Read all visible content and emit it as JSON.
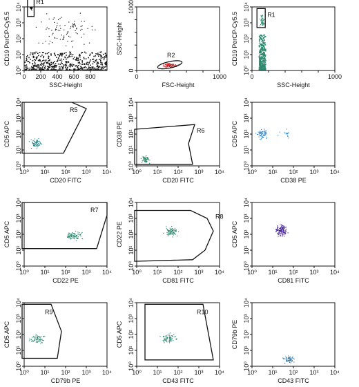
{
  "chart_data": [
    {
      "type": "scatter",
      "xlabel": "SSC-Height",
      "ylabel": "CD19 PerCP-Cy5.5",
      "xscale": "linear",
      "xlim": [
        0,
        1000
      ],
      "xticks": [
        "0",
        "200",
        "400",
        "600",
        "800"
      ],
      "yscale": "log",
      "ylim": [
        1,
        10000
      ],
      "yticks": [
        "10⁰",
        "10¹",
        "10²",
        "10³",
        "10⁴"
      ],
      "color": "#111111",
      "clusters": [
        {
          "x": [
            60,
            100
          ],
          "y": [
            3.6,
            4.6
          ],
          "n": 45
        },
        {
          "x": [
            0,
            1000
          ],
          "y": [
            0,
            1.2
          ],
          "n": 520,
          "dense": true
        },
        {
          "x": [
            0,
            1000
          ],
          "y": [
            1,
            4
          ],
          "n": 90
        }
      ],
      "gates": [
        {
          "label": "R1",
          "shape": "polygon",
          "points": [
            [
              40,
              4.7
            ],
            [
              120,
              4.7
            ],
            [
              120,
              3.4
            ],
            [
              40,
              3.4
            ]
          ]
        }
      ]
    },
    {
      "type": "scatter",
      "xlabel": "FSC-Height",
      "ylabel": "SSC-Height",
      "xscale": "linear",
      "xlim": [
        0,
        1000
      ],
      "xticks": [
        "0",
        "",
        "",
        "",
        "",
        "1000"
      ],
      "yscale": "linear",
      "ylim": [
        0,
        1000
      ],
      "yticks": [
        "0",
        "",
        "",
        "",
        "",
        "1000"
      ],
      "color": "#cc2222",
      "clusters": [
        {
          "x": [
            280,
            520
          ],
          "y": [
            40,
            130
          ],
          "n": 90
        }
      ],
      "gates": [
        {
          "label": "R2",
          "shape": "ellipse",
          "cx": 400,
          "cy": 90,
          "rx": 150,
          "ry": 50,
          "rot": -12
        }
      ]
    },
    {
      "type": "scatter",
      "xlabel": "SSC-Height",
      "ylabel": "CD19 PerCP-Cy5.5",
      "xscale": "linear",
      "xlim": [
        0,
        1000
      ],
      "xticks": [
        "0",
        "",
        "",
        "",
        "",
        "1000"
      ],
      "yscale": "log",
      "ylim": [
        1,
        10000
      ],
      "yticks": [
        "10⁰",
        "10¹",
        "10²",
        "10³",
        "10⁴"
      ],
      "color": "#2e8a6e",
      "clusters": [
        {
          "x": [
            80,
            160
          ],
          "y": [
            2.7,
            3.6
          ],
          "n": 45
        },
        {
          "x": [
            80,
            160
          ],
          "y": [
            0,
            2.3
          ],
          "n": 380,
          "dense": true
        }
      ],
      "gates": [
        {
          "label": "R1",
          "shape": "polygon",
          "points": [
            [
              60,
              3.9
            ],
            [
              160,
              3.9
            ],
            [
              160,
              2.7
            ],
            [
              60,
              2.7
            ]
          ]
        }
      ]
    },
    {
      "type": "scatter",
      "xlabel": "CD20 FITC",
      "ylabel": "CD5 APC",
      "xscale": "log",
      "xlim": [
        1,
        10000
      ],
      "xticks": [
        "10⁰",
        "10¹",
        "10²",
        "10³",
        "10⁴"
      ],
      "yscale": "log",
      "ylim": [
        1,
        10000
      ],
      "yticks": [
        "10⁰",
        "10¹",
        "10²",
        "10³",
        "10⁴"
      ],
      "color": "#2e8a8a",
      "clusters": [
        {
          "x": [
            0.2,
            0.9
          ],
          "y": [
            1.0,
            1.9
          ],
          "n": 70
        }
      ],
      "gates": [
        {
          "label": "R5",
          "shape": "polygon",
          "points": [
            [
              -0.1,
              4.0
            ],
            [
              2.3,
              4.0
            ],
            [
              3.0,
              3.6
            ],
            [
              1.9,
              0.8
            ],
            [
              -0.1,
              0.8
            ]
          ]
        }
      ]
    },
    {
      "type": "scatter",
      "xlabel": "CD20 FITC",
      "ylabel": "CD38 PE",
      "xscale": "log",
      "xlim": [
        1,
        10000
      ],
      "xticks": [
        "10⁰",
        "10¹",
        "10²",
        "10³",
        "10⁴"
      ],
      "yscale": "log",
      "ylim": [
        1,
        10000
      ],
      "yticks": [
        "10⁰",
        "10¹",
        "10²",
        "10³",
        "10⁴"
      ],
      "color": "#2e8a6e",
      "clusters": [
        {
          "x": [
            0.1,
            0.7
          ],
          "y": [
            0.1,
            0.7
          ],
          "n": 60
        }
      ],
      "gates": [
        {
          "label": "R6",
          "shape": "polygon",
          "points": [
            [
              -0.1,
              2.3
            ],
            [
              2.8,
              2.6
            ],
            [
              2.5,
              1.4
            ],
            [
              2.7,
              0.1
            ],
            [
              -0.1,
              0.1
            ]
          ]
        }
      ]
    },
    {
      "type": "scatter",
      "xlabel": "CD38 PE",
      "ylabel": "CD5 APC",
      "xscale": "log",
      "xlim": [
        1,
        10000
      ],
      "xticks": [
        "10⁰",
        "10¹",
        "10²",
        "10³",
        "10⁴"
      ],
      "yscale": "log",
      "ylim": [
        1,
        10000
      ],
      "yticks": [
        "10⁰",
        "10¹",
        "10²",
        "10³",
        "10⁴"
      ],
      "color": "#3a88c8",
      "clusters": [
        {
          "x": [
            0.1,
            0.9
          ],
          "y": [
            1.6,
            2.4
          ],
          "n": 70
        },
        {
          "x": [
            1.0,
            2.2
          ],
          "y": [
            1.7,
            2.4
          ],
          "n": 15
        }
      ],
      "gates": []
    },
    {
      "type": "scatter",
      "xlabel": "CD22 PE",
      "ylabel": "CD5 APC",
      "xscale": "log",
      "xlim": [
        1,
        10000
      ],
      "xticks": [
        "10⁰",
        "10¹",
        "10²",
        "10³",
        "10⁴"
      ],
      "yscale": "log",
      "ylim": [
        1,
        10000
      ],
      "yticks": [
        "10⁰",
        "10¹",
        "10²",
        "10³",
        "10⁴"
      ],
      "color": "#2e8a6e",
      "clusters": [
        {
          "x": [
            1.8,
            2.9
          ],
          "y": [
            1.6,
            2.3
          ],
          "n": 90
        }
      ],
      "gates": [
        {
          "label": "R7",
          "shape": "polygon",
          "points": [
            [
              -0.1,
              4.0
            ],
            [
              4.0,
              4.0
            ],
            [
              4.0,
              3.2
            ],
            [
              3.5,
              1.1
            ],
            [
              -0.1,
              1.1
            ]
          ]
        }
      ]
    },
    {
      "type": "scatter",
      "xlabel": "CD81 FITC",
      "ylabel": "CD22 PE",
      "xscale": "log",
      "xlim": [
        1,
        10000
      ],
      "xticks": [
        "10⁰",
        "10¹",
        "10²",
        "10³",
        "10⁴"
      ],
      "yscale": "log",
      "ylim": [
        1,
        10000
      ],
      "yticks": [
        "10⁰",
        "10¹",
        "10²",
        "10³",
        "10⁴"
      ],
      "color": "#2e8a6e",
      "clusters": [
        {
          "x": [
            1.2,
            2.1
          ],
          "y": [
            1.8,
            2.6
          ],
          "n": 75
        }
      ],
      "gates": [
        {
          "label": "R8",
          "shape": "polygon",
          "points": [
            [
              -0.1,
              3.5
            ],
            [
              2.6,
              3.5
            ],
            [
              3.4,
              3.0
            ],
            [
              3.7,
              2.2
            ],
            [
              3.3,
              1.0
            ],
            [
              2.7,
              0.4
            ],
            [
              -0.1,
              0.3
            ]
          ]
        }
      ]
    },
    {
      "type": "scatter",
      "xlabel": "CD81 FITC",
      "ylabel": "CD5 APC",
      "xscale": "log",
      "xlim": [
        1,
        10000
      ],
      "xticks": [
        "10⁰",
        "10¹",
        "10²",
        "10³",
        "10⁴"
      ],
      "yscale": "log",
      "ylim": [
        1,
        10000
      ],
      "yticks": [
        "10⁰",
        "10¹",
        "10²",
        "10³",
        "10⁴"
      ],
      "color": "#4a2a9a",
      "clusters": [
        {
          "x": [
            1.0,
            1.8
          ],
          "y": [
            1.7,
            2.8
          ],
          "n": 120
        }
      ],
      "gates": []
    },
    {
      "type": "scatter",
      "xlabel": "CD79b PE",
      "ylabel": "CD5 APC",
      "xscale": "log",
      "xlim": [
        1,
        10000
      ],
      "xticks": [
        "10⁰",
        "10¹",
        "10²",
        "10³",
        "10⁴"
      ],
      "yscale": "log",
      "ylim": [
        1,
        10000
      ],
      "yticks": [
        "10⁰",
        "10¹",
        "10²",
        "10³",
        "10⁴"
      ],
      "color": "#2e8a6e",
      "clusters": [
        {
          "x": [
            0.1,
            1.2
          ],
          "y": [
            1.4,
            2.1
          ],
          "n": 70
        }
      ],
      "gates": [
        {
          "label": "R9",
          "shape": "polygon",
          "points": [
            [
              -0.1,
              3.9
            ],
            [
              1.3,
              3.9
            ],
            [
              1.8,
              2.2
            ],
            [
              1.6,
              0.5
            ],
            [
              -0.1,
              0.5
            ]
          ]
        }
      ]
    },
    {
      "type": "scatter",
      "xlabel": "CD43 FITC",
      "ylabel": "CD5 APC",
      "xscale": "log",
      "xlim": [
        1,
        10000
      ],
      "xticks": [
        "10⁰",
        "10¹",
        "10²",
        "10³",
        "10⁴"
      ],
      "yscale": "log",
      "ylim": [
        1,
        10000
      ],
      "yticks": [
        "10⁰",
        "10¹",
        "10²",
        "10³",
        "10⁴"
      ],
      "color": "#2e8a6e",
      "clusters": [
        {
          "x": [
            1.0,
            2.0
          ],
          "y": [
            1.4,
            2.2
          ],
          "n": 70
        }
      ],
      "gates": [
        {
          "label": "R10",
          "shape": "polygon",
          "points": [
            [
              0.4,
              3.9
            ],
            [
              3.2,
              3.9
            ],
            [
              3.7,
              0.4
            ],
            [
              0.4,
              0.4
            ]
          ]
        }
      ]
    },
    {
      "type": "scatter",
      "xlabel": "CD43 FITC",
      "ylabel": "CD79b PE",
      "xscale": "log",
      "xlim": [
        1,
        10000
      ],
      "xticks": [
        "10⁰",
        "10¹",
        "10²",
        "10³",
        "10⁴"
      ],
      "yscale": "log",
      "ylim": [
        1,
        10000
      ],
      "yticks": [
        "10⁰",
        "10¹",
        "10²",
        "10³",
        "10⁴"
      ],
      "color": "#2a7ab0",
      "clusters": [
        {
          "x": [
            1.3,
            2.2
          ],
          "y": [
            0.1,
            0.8
          ],
          "n": 55
        }
      ],
      "gates": []
    }
  ]
}
